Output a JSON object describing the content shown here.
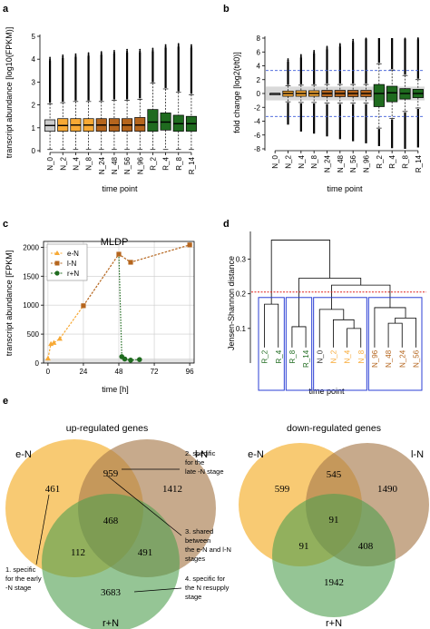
{
  "panels": {
    "a": "a",
    "b": "b",
    "c": "c",
    "d": "d",
    "e": "e"
  },
  "chart_data": [
    {
      "panel": "a",
      "type": "box",
      "ylabel": "transcript abundance [log10(FPKM)]",
      "xlabel": "time point",
      "ylim": [
        0,
        5
      ],
      "yticks": [
        0,
        1,
        2,
        3,
        4,
        5
      ],
      "grid": false,
      "categories": [
        "N_0",
        "N_2",
        "N_4",
        "N_8",
        "N_24",
        "N_48",
        "N_56",
        "N_96",
        "R_2",
        "R_4",
        "R_8",
        "R_14"
      ],
      "q1": [
        0.85,
        0.85,
        0.85,
        0.85,
        0.85,
        0.85,
        0.85,
        0.85,
        0.85,
        0.9,
        0.85,
        0.85
      ],
      "median": [
        1.1,
        1.1,
        1.12,
        1.12,
        1.12,
        1.12,
        1.12,
        1.12,
        1.25,
        1.25,
        1.18,
        1.18
      ],
      "q3": [
        1.35,
        1.4,
        1.4,
        1.4,
        1.4,
        1.4,
        1.4,
        1.45,
        1.8,
        1.65,
        1.55,
        1.5
      ],
      "whisker_low": [
        0.05,
        0.05,
        0.05,
        0.05,
        0.05,
        0.05,
        0.05,
        0.05,
        0.05,
        0.05,
        0.05,
        0.05
      ],
      "whisker_high": [
        2.05,
        2.1,
        2.15,
        2.15,
        2.15,
        2.2,
        2.2,
        2.25,
        2.95,
        2.7,
        2.55,
        2.45
      ],
      "outlier_max": [
        3.95,
        4.05,
        4.1,
        4.15,
        4.2,
        4.25,
        4.3,
        4.3,
        4.35,
        4.5,
        4.55,
        4.5
      ],
      "colors": [
        "#cccccc",
        "#f7a935",
        "#f7a935",
        "#f7a935",
        "#b5651d",
        "#b5651d",
        "#b5651d",
        "#b5651d",
        "#1f6b1f",
        "#1f6b1f",
        "#1f6b1f",
        "#1f6b1f"
      ]
    },
    {
      "panel": "b",
      "type": "box",
      "ylabel": "fold change [log2(t/t0)]",
      "xlabel": "time point",
      "ylim": [
        -8,
        8
      ],
      "yticks": [
        -8,
        -6,
        -4,
        -2,
        0,
        2,
        4,
        6,
        8
      ],
      "hlines": [
        3.32,
        -3.32
      ],
      "band": [
        -1,
        1
      ],
      "categories": [
        "N_0",
        "N_2",
        "N_4",
        "N_8",
        "N_24",
        "N_48",
        "N_56",
        "N_96",
        "R_2",
        "R_4",
        "R_8",
        "R_14"
      ],
      "q1": [
        0,
        -0.4,
        -0.4,
        -0.4,
        -0.45,
        -0.45,
        -0.45,
        -0.45,
        -1.9,
        -1.2,
        -0.8,
        -0.6
      ],
      "median": [
        0,
        0,
        0,
        0,
        0,
        0,
        0,
        0,
        0,
        0.1,
        0,
        0
      ],
      "q3": [
        0,
        0.35,
        0.4,
        0.4,
        0.45,
        0.45,
        0.45,
        0.45,
        1.3,
        1.05,
        0.7,
        0.6
      ],
      "whisker_low": [
        0,
        -1.2,
        -1.3,
        -1.3,
        -1.4,
        -1.4,
        -1.4,
        -1.4,
        -5.0,
        -3.6,
        -2.6,
        -2.1
      ],
      "whisker_high": [
        0,
        1.1,
        1.2,
        1.2,
        1.3,
        1.3,
        1.3,
        1.3,
        4.3,
        3.4,
        2.6,
        2.0
      ],
      "outlier_min": [
        0,
        -4.5,
        -5.5,
        -5.8,
        -6.2,
        -6.6,
        -6.9,
        -7.2,
        -7.6,
        -7.9,
        -8.0,
        -7.8
      ],
      "outlier_max": [
        0,
        4.6,
        5.2,
        5.8,
        6.4,
        6.8,
        7.4,
        7.9,
        8.0,
        8.0,
        7.9,
        7.8
      ],
      "colors": [
        "#cccccc",
        "#f7a935",
        "#f7a935",
        "#f7a935",
        "#b5651d",
        "#b5651d",
        "#b5651d",
        "#b5651d",
        "#1f6b1f",
        "#1f6b1f",
        "#1f6b1f",
        "#1f6b1f"
      ]
    },
    {
      "panel": "c",
      "type": "line",
      "title": "MLDP",
      "ylabel": "transcript abundance [FPKM]",
      "xlabel": "time [h]",
      "xlim": [
        -3,
        99
      ],
      "ylim": [
        0,
        2100
      ],
      "xticks": [
        0,
        24,
        48,
        72,
        96
      ],
      "yticks": [
        0,
        500,
        1000,
        1500,
        2000
      ],
      "band": [
        0,
        80
      ],
      "series": [
        {
          "name": "e-N",
          "color": "#f7a935",
          "marker": "triangle",
          "x": [
            0,
            2,
            4,
            8
          ],
          "y": [
            80,
            330,
            350,
            420
          ]
        },
        {
          "name": "l-N",
          "color": "#b5651d",
          "marker": "square",
          "x": [
            24,
            48,
            56,
            96
          ],
          "y": [
            990,
            1880,
            1740,
            2040
          ]
        },
        {
          "name": "r+N",
          "color": "#1f6b1f",
          "marker": "circle",
          "x": [
            48,
            50,
            52,
            56,
            62
          ],
          "y": [
            1880,
            110,
            70,
            50,
            60
          ]
        }
      ]
    },
    {
      "panel": "d",
      "type": "dendrogram",
      "ylabel": "Jensen-Shannon distance",
      "xlabel": "time point",
      "ylim": [
        0,
        0.38
      ],
      "yticks": [
        0.1,
        0.2,
        0.3
      ],
      "cutoff": 0.205,
      "leaves": [
        {
          "label": "R_2",
          "color": "#1f6b1f"
        },
        {
          "label": "R_4",
          "color": "#1f6b1f"
        },
        {
          "label": "R_8",
          "color": "#1f6b1f"
        },
        {
          "label": "R_14",
          "color": "#1f6b1f"
        },
        {
          "label": "N_0",
          "color": "#333333"
        },
        {
          "label": "N_2",
          "color": "#f7a935"
        },
        {
          "label": "N_4",
          "color": "#f7a935"
        },
        {
          "label": "N_8",
          "color": "#f7a935"
        },
        {
          "label": "N_96",
          "color": "#b5651d"
        },
        {
          "label": "N_48",
          "color": "#b5651d"
        },
        {
          "label": "N_24",
          "color": "#b5651d"
        },
        {
          "label": "N_56",
          "color": "#b5651d"
        }
      ],
      "merges": [
        {
          "a": 0,
          "b": 1,
          "h": 0.17
        },
        {
          "a": 2,
          "b": 3,
          "h": 0.105
        },
        {
          "a": 6,
          "b": 7,
          "h": 0.1
        },
        {
          "a": 5,
          "b": 14,
          "h": 0.125
        },
        {
          "a": 4,
          "b": 15,
          "h": 0.155
        },
        {
          "a": 9,
          "b": 10,
          "h": 0.115
        },
        {
          "a": 11,
          "b": 17,
          "h": 0.13
        },
        {
          "a": 8,
          "b": 18,
          "h": 0.16
        },
        {
          "a": 16,
          "b": 19,
          "h": 0.225
        },
        {
          "a": 13,
          "b": 20,
          "h": 0.245
        },
        {
          "a": 12,
          "b": 21,
          "h": 0.355
        }
      ],
      "groups": [
        [
          0,
          1
        ],
        [
          2,
          3
        ],
        [
          4,
          7
        ],
        [
          8,
          11
        ]
      ]
    },
    {
      "panel": "e-up",
      "type": "venn",
      "title": "up-regulated genes",
      "sets": [
        "e-N",
        "l-N",
        "r+N"
      ],
      "colors": [
        "#f7c15a",
        "#b98b5c",
        "#5ea85e"
      ],
      "regions": {
        "eN": 461,
        "lN": 1412,
        "rN": 3683,
        "eN_lN": 959,
        "eN_rN": 112,
        "lN_rN": 491,
        "all": 468
      }
    },
    {
      "panel": "e-down",
      "type": "venn",
      "title": "down-regulated genes",
      "sets": [
        "e-N",
        "l-N",
        "r+N"
      ],
      "colors": [
        "#f7c15a",
        "#b98b5c",
        "#5ea85e"
      ],
      "regions": {
        "eN": 599,
        "lN": 1490,
        "rN": 1942,
        "eN_lN": 545,
        "eN_rN": 91,
        "lN_rN": 408,
        "all": 91
      }
    }
  ],
  "annotations": [
    "1. specific for the early -N stage",
    "2. specific for the late -N stage",
    "3. shared between the e-N and l-N stages",
    "4. specific for the N resupply stage"
  ]
}
